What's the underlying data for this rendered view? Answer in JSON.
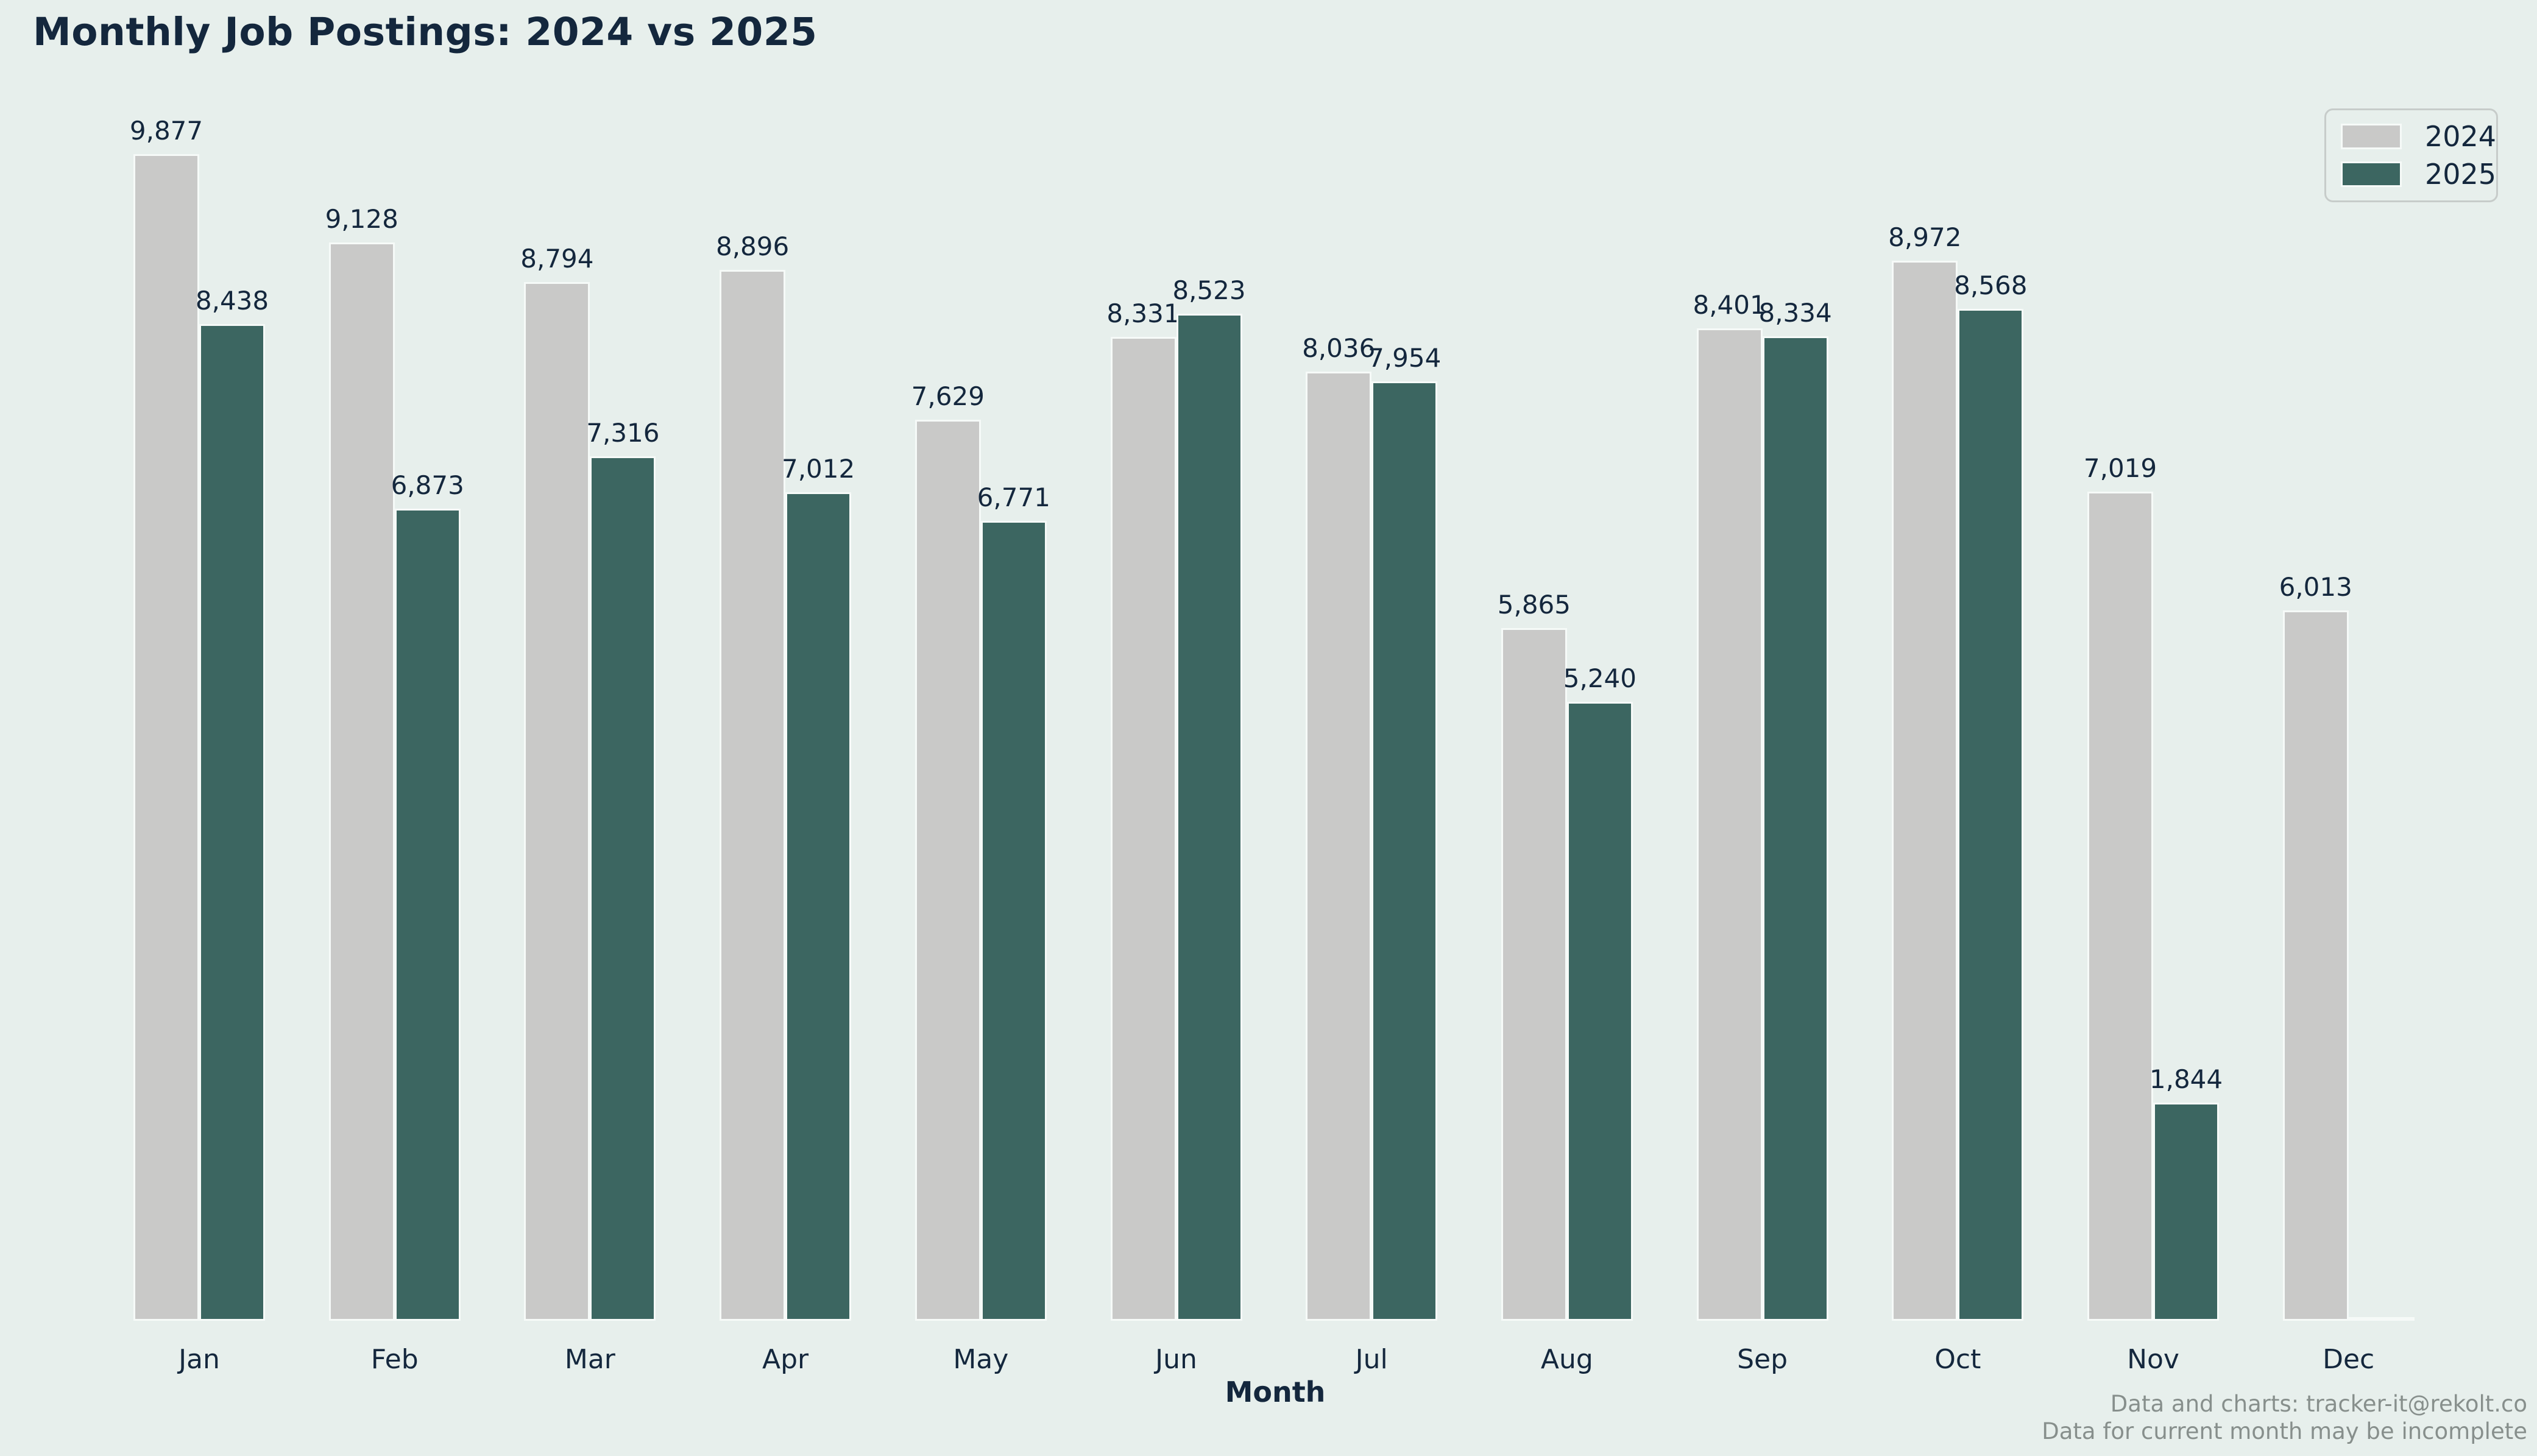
{
  "title": "Monthly Job Postings: 2024 vs 2025",
  "legend": {
    "position": "upper right",
    "items": [
      {
        "label": "2024",
        "color": "#c9c9c8"
      },
      {
        "label": "2025",
        "color": "#3c6661"
      }
    ]
  },
  "x_axis_title": "Month",
  "footer": {
    "line1": "Data and charts: tracker-it@rekolt.co",
    "line2": "Data for current month may be incomplete"
  },
  "colors": {
    "background": "#e7efec",
    "bar_2024": "#c9c9c8",
    "bar_2025": "#3c6661",
    "bar_edge": "#f6faf8",
    "text_dark": "#14273d",
    "footer_gray": "#878f8c",
    "legend_border": "#c7ccca"
  },
  "chart_data": {
    "type": "bar",
    "title": "Monthly Job Postings: 2024 vs 2025",
    "categories": [
      "Jan",
      "Feb",
      "Mar",
      "Apr",
      "May",
      "Jun",
      "Jul",
      "Aug",
      "Sep",
      "Oct",
      "Nov",
      "Dec"
    ],
    "series": [
      {
        "name": "2024",
        "color": "#c9c9c8",
        "values": [
          9877,
          9128,
          8794,
          8896,
          7629,
          8331,
          8036,
          5865,
          8401,
          8972,
          7019,
          6013
        ]
      },
      {
        "name": "2025",
        "color": "#3c6661",
        "values": [
          8438,
          6873,
          7316,
          7012,
          6771,
          8523,
          7954,
          5240,
          8334,
          8568,
          1844,
          null
        ]
      }
    ],
    "value_labels": true,
    "value_label_format": "#,###",
    "xlabel": "Month",
    "ylabel": "",
    "ylim": [
      0,
      10500
    ],
    "grid": false,
    "legend_position": "upper right",
    "note": "Dec 2025 has no bar (current month, incomplete data)"
  }
}
